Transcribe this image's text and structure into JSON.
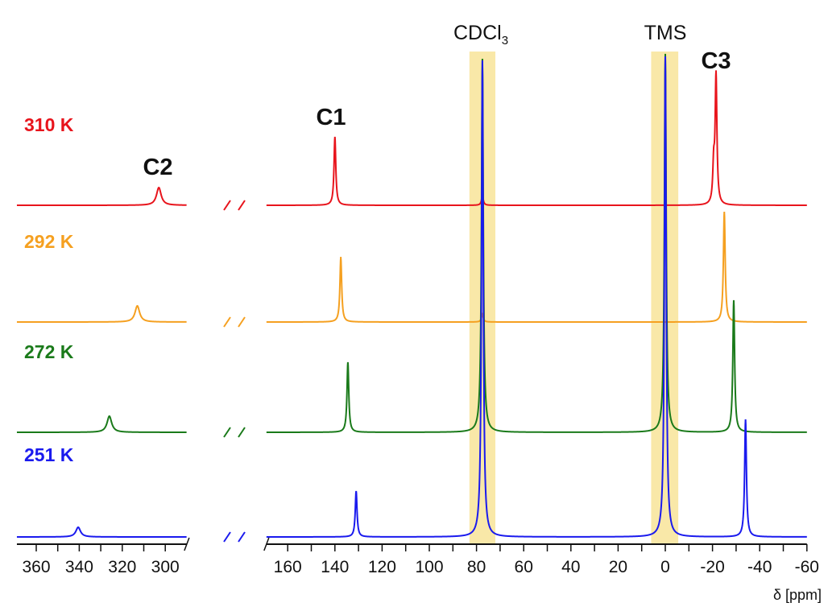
{
  "chart_data": {
    "type": "line",
    "title": "",
    "xlabel": "δ [ppm]",
    "ylabel": "",
    "x_axis_reversed": true,
    "x_axis_break": true,
    "xlim_segments": [
      [
        369,
        290
      ],
      [
        169,
        -60
      ]
    ],
    "x_ticks_left": [
      360,
      340,
      320,
      300
    ],
    "x_ticks_right": [
      160,
      140,
      120,
      100,
      80,
      60,
      40,
      20,
      0,
      -20,
      -40,
      -60
    ],
    "grid": false,
    "highlight_bands": [
      {
        "label": "CDCl3",
        "label_main": "CDCl",
        "label_sub": "3",
        "range_ppm": [
          83,
          72
        ],
        "peak_ppm": 77.5,
        "color": "#f9e8a8"
      },
      {
        "label": "TMS",
        "range_ppm": [
          6,
          -5.5
        ],
        "peak_ppm": 0,
        "color": "#f9e8a8"
      }
    ],
    "peak_labels": [
      "C1",
      "C2",
      "C3"
    ],
    "series": [
      {
        "name": "310 K",
        "color": "#e8141c",
        "peaks": [
          {
            "label": "C2",
            "ppm": 303,
            "intensity": 22
          },
          {
            "label": "C1",
            "ppm": 140,
            "intensity": 85
          },
          {
            "label": "CDCl3",
            "ppm": 77.5,
            "intensity": 12
          },
          {
            "label": "C3",
            "ppm": -21.5,
            "intensity": 159
          },
          {
            "label": "C3b",
            "ppm": -20.5,
            "intensity": 45
          }
        ]
      },
      {
        "name": "292 K",
        "color": "#f5a020",
        "peaks": [
          {
            "label": "C2",
            "ppm": 313,
            "intensity": 20
          },
          {
            "label": "C1",
            "ppm": 137.5,
            "intensity": 80
          },
          {
            "label": "CDCl3",
            "ppm": 77.5,
            "intensity": 10
          },
          {
            "label": "C3",
            "ppm": -25,
            "intensity": 137
          }
        ]
      },
      {
        "name": "272 K",
        "color": "#1a7a1a",
        "peaks": [
          {
            "label": "C2",
            "ppm": 326,
            "intensity": 20
          },
          {
            "label": "C1",
            "ppm": 134.5,
            "intensity": 87
          },
          {
            "label": "CDCl3",
            "ppm": 77.5,
            "intensity": 464
          },
          {
            "label": "TMS",
            "ppm": 0,
            "intensity": 470
          },
          {
            "label": "C3",
            "ppm": -29,
            "intensity": 164
          }
        ]
      },
      {
        "name": "251 K",
        "color": "#1a1aee",
        "peaks": [
          {
            "label": "C2",
            "ppm": 340.5,
            "intensity": 12
          },
          {
            "label": "C1",
            "ppm": 131,
            "intensity": 57
          },
          {
            "label": "CDCl3",
            "ppm": 77.5,
            "intensity": 592
          },
          {
            "label": "TMS",
            "ppm": 0,
            "intensity": 597
          },
          {
            "label": "C3",
            "ppm": -34,
            "intensity": 146
          }
        ]
      }
    ]
  }
}
